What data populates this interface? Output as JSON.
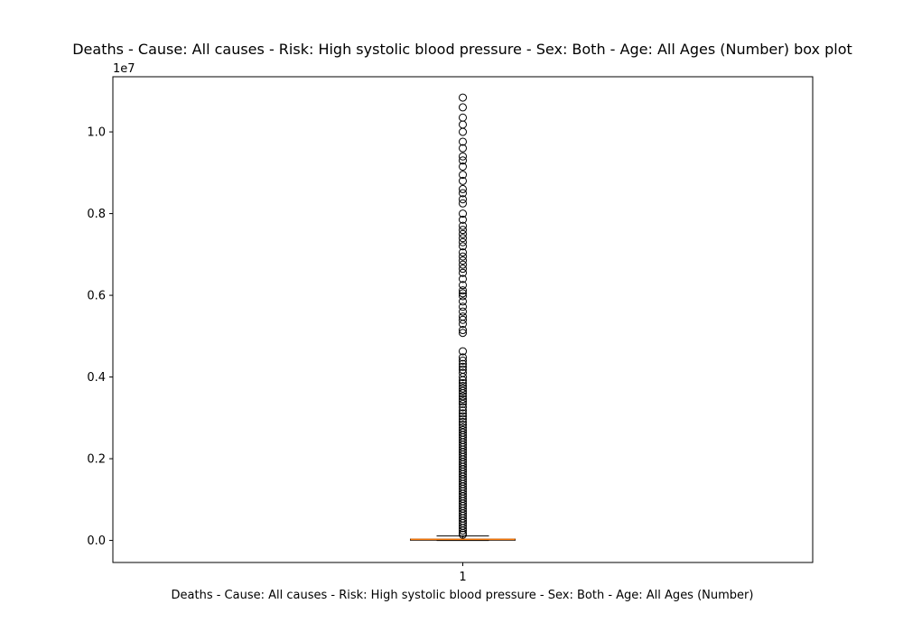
{
  "chart_data": {
    "type": "box",
    "title": "Deaths - Cause: All causes - Risk: High systolic blood pressure - Sex: Both - Age: All Ages (Number) box plot",
    "xlabel": "Deaths - Cause: All causes - Risk: High systolic blood pressure - Sex: Both - Age: All Ages (Number)",
    "ylabel": "",
    "y_offset_label": "1e7",
    "ylim": [
      -0.054,
      1.135
    ],
    "y_ticks": [
      0.0,
      0.2,
      0.4,
      0.6,
      0.8,
      1.0
    ],
    "y_tick_labels": [
      "0.0",
      "0.2",
      "0.4",
      "0.6",
      "0.8",
      "1.0"
    ],
    "categories": [
      "1"
    ],
    "boxes": [
      {
        "category": "1",
        "q1": 0.0006,
        "median": 0.0027,
        "q3": 0.0032,
        "whisker_low": 0.0,
        "whisker_high": 0.0108,
        "outliers": [
          1.084,
          1.06,
          1.035,
          1.018,
          1.0,
          0.976,
          0.96,
          0.94,
          0.93,
          0.915,
          0.895,
          0.88,
          0.86,
          0.85,
          0.835,
          0.825,
          0.8,
          0.785,
          0.77,
          0.76,
          0.75,
          0.74,
          0.73,
          0.72,
          0.705,
          0.695,
          0.685,
          0.675,
          0.665,
          0.655,
          0.64,
          0.625,
          0.612,
          0.605,
          0.598,
          0.585,
          0.572,
          0.56,
          0.548,
          0.54,
          0.53,
          0.515,
          0.508,
          0.463,
          0.448,
          0.44,
          0.432,
          0.425,
          0.418,
          0.41,
          0.4,
          0.392,
          0.385,
          0.378,
          0.372,
          0.366,
          0.36,
          0.353,
          0.346,
          0.34,
          0.334,
          0.326,
          0.318,
          0.311,
          0.304,
          0.297,
          0.29,
          0.283,
          0.276,
          0.27,
          0.264,
          0.258,
          0.252,
          0.246,
          0.24,
          0.234,
          0.228,
          0.222,
          0.216,
          0.21,
          0.204,
          0.198,
          0.192,
          0.186,
          0.18,
          0.174,
          0.168,
          0.162,
          0.156,
          0.15,
          0.144,
          0.138,
          0.132,
          0.126,
          0.12,
          0.114,
          0.108,
          0.102,
          0.096,
          0.09,
          0.084,
          0.078,
          0.072,
          0.066,
          0.06,
          0.054,
          0.048,
          0.042,
          0.036,
          0.03,
          0.024,
          0.018,
          0.014
        ]
      }
    ],
    "colors": {
      "box": "#000000",
      "median": "#ff7f0e",
      "outlier_edge": "#000000",
      "background": "#ffffff"
    },
    "grid": false,
    "legend": "none"
  }
}
